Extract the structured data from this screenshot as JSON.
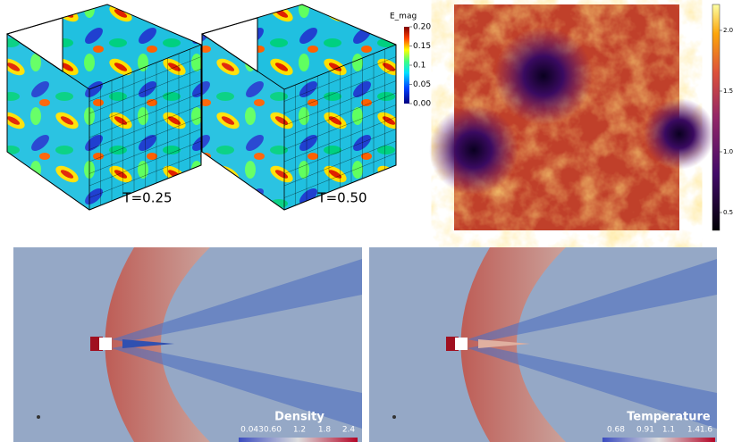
{
  "panels": {
    "magnetic": {
      "colorbar": {
        "title": "E_mag",
        "ticks": [
          "0.20",
          "0.15",
          "0.1",
          "0.05",
          "0.00"
        ]
      },
      "labels": [
        "T=0.25",
        "T=0.50"
      ]
    },
    "turbulence": {
      "colorbar": {
        "ticks": [
          "2.0",
          "1.5",
          "1.0",
          "0.5"
        ]
      }
    },
    "flows": [
      {
        "title": "Density",
        "ticks": [
          "0.043",
          "0.60",
          "1.2",
          "1.8",
          "2.4"
        ]
      },
      {
        "title": "Temperature",
        "ticks": [
          "0.68",
          "0.91",
          "1.1",
          "1.4",
          "1.6"
        ]
      }
    ]
  }
}
